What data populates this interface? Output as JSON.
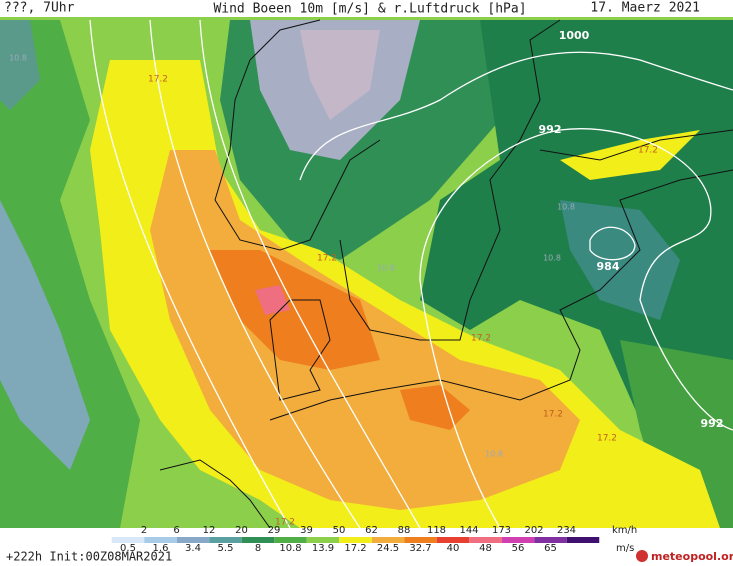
{
  "header": {
    "left": "???, 7Uhr",
    "title": "Wind Boeen 10m [m/s] & r.Luftdruck [hPa]",
    "date": "17. Maerz 2021"
  },
  "isobar_labels": [
    "1000",
    "992",
    "984",
    "992"
  ],
  "contour_labels_17": [
    "17.2",
    "17.2",
    "17.2",
    "17.2",
    "17.2",
    "17.2",
    "17.2"
  ],
  "contour_labels_10": [
    "10.8",
    "10.8",
    "10.8",
    "10.8",
    "10.8"
  ],
  "legend": {
    "kmh": [
      2,
      6,
      12,
      20,
      29,
      39,
      50,
      62,
      88,
      118,
      144,
      173,
      202,
      234
    ],
    "kmh_unit": "km/h",
    "ms": [
      0.5,
      1.6,
      3.4,
      5.5,
      8,
      10.8,
      13.9,
      17.2,
      24.5,
      32.7,
      40,
      48,
      56,
      65
    ],
    "ms_unit": "m/s"
  },
  "footer": {
    "run": "+222h Init:00Z08MAR2021",
    "logo": "meteopool.org"
  }
}
